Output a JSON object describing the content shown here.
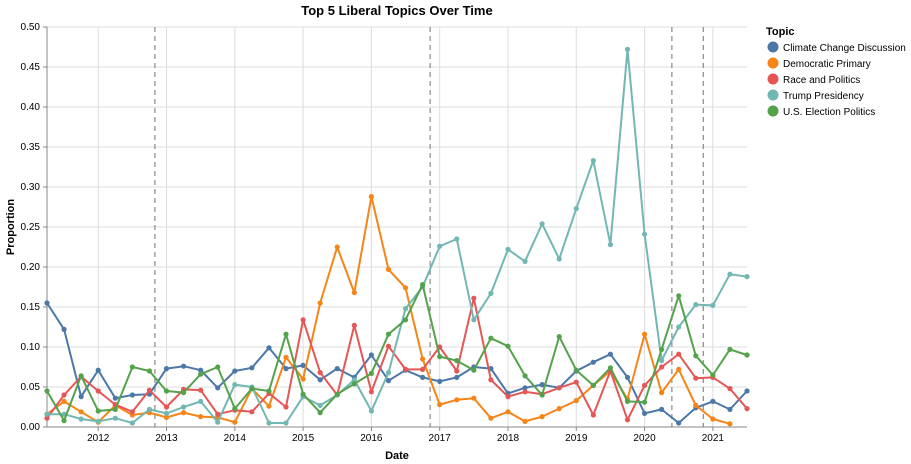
{
  "chart_data": {
    "type": "line",
    "title": "Top 5 Liberal Topics Over Time",
    "xlabel": "Date",
    "ylabel": "Proportion",
    "xlim": [
      2011.25,
      2021.5
    ],
    "ylim": [
      0,
      0.5
    ],
    "y_ticks": [
      "0.00",
      "0.05",
      "0.10",
      "0.15",
      "0.20",
      "0.25",
      "0.30",
      "0.35",
      "0.40",
      "0.45",
      "0.50"
    ],
    "x_ticks": [
      "2012",
      "2013",
      "2014",
      "2015",
      "2016",
      "2017",
      "2018",
      "2019",
      "2020",
      "2021"
    ],
    "grid": true,
    "legend_title": "Topic",
    "legend_position": "right",
    "reference_lines_x": [
      2012.83,
      2016.86,
      2020.4,
      2020.86
    ],
    "x": [
      2011.25,
      2011.5,
      2011.75,
      2012,
      2012.25,
      2012.5,
      2012.75,
      2013,
      2013.25,
      2013.5,
      2013.75,
      2014,
      2014.25,
      2014.5,
      2014.75,
      2015,
      2015.25,
      2015.5,
      2015.75,
      2016,
      2016.25,
      2016.5,
      2016.75,
      2017,
      2017.25,
      2017.5,
      2017.75,
      2018,
      2018.25,
      2018.5,
      2018.75,
      2019,
      2019.25,
      2019.5,
      2019.75,
      2020,
      2020.25,
      2020.5,
      2020.75,
      2021,
      2021.25,
      2021.5
    ],
    "series": [
      {
        "name": "Climate Change Discussion",
        "color": "#4c78a8",
        "values": [
          0.155,
          0.122,
          0.038,
          0.071,
          0.036,
          0.04,
          0.041,
          0.073,
          0.076,
          0.071,
          0.049,
          0.07,
          0.074,
          0.099,
          0.073,
          0.077,
          0.059,
          0.073,
          0.062,
          0.09,
          0.058,
          0.071,
          0.062,
          0.057,
          0.062,
          0.075,
          0.073,
          0.042,
          0.049,
          0.053,
          0.049,
          0.07,
          0.081,
          0.091,
          0.062,
          0.017,
          0.022,
          0.005,
          0.024,
          0.032,
          0.022,
          0.045
        ]
      },
      {
        "name": "Democratic Primary",
        "color": "#f58518",
        "values": [
          0.016,
          0.032,
          0.019,
          0.006,
          0.027,
          0.015,
          0.018,
          0.012,
          0.018,
          0.013,
          0.012,
          0.006,
          0.048,
          0.026,
          0.087,
          0.06,
          0.155,
          0.225,
          0.168,
          0.288,
          0.197,
          0.174,
          0.085,
          0.028,
          0.034,
          0.036,
          0.011,
          0.019,
          0.007,
          0.013,
          0.023,
          0.033,
          0.052,
          0.07,
          0.035,
          0.116,
          0.043,
          0.072,
          0.027,
          0.01,
          0.004,
          null
        ]
      },
      {
        "name": "Race and Politics",
        "color": "#e45756",
        "values": [
          0.011,
          0.04,
          0.063,
          0.045,
          0.028,
          0.019,
          0.046,
          0.025,
          0.047,
          0.046,
          0.016,
          0.021,
          0.019,
          0.042,
          0.025,
          0.134,
          0.068,
          0.04,
          0.127,
          0.044,
          0.101,
          0.072,
          0.072,
          0.1,
          0.07,
          0.161,
          0.059,
          0.038,
          0.044,
          0.041,
          0.049,
          0.056,
          0.015,
          0.07,
          0.009,
          0.052,
          0.075,
          0.091,
          0.061,
          0.062,
          0.048,
          0.023
        ]
      },
      {
        "name": "Trump Presidency",
        "color": "#72b7b2",
        "values": [
          0.016,
          0.016,
          0.01,
          0.007,
          0.011,
          0.005,
          0.022,
          0.017,
          0.025,
          0.032,
          0.006,
          0.053,
          0.05,
          0.005,
          0.005,
          0.038,
          0.027,
          0.04,
          0.059,
          0.02,
          0.068,
          0.148,
          0.175,
          0.226,
          0.235,
          0.134,
          0.167,
          0.222,
          0.207,
          0.254,
          0.21,
          0.273,
          0.333,
          0.228,
          0.472,
          0.241,
          0.083,
          0.125,
          0.153,
          0.152,
          0.191,
          0.188
        ]
      },
      {
        "name": "U.S. Election Politics",
        "color": "#54a24b",
        "values": [
          0.045,
          0.008,
          0.064,
          0.02,
          0.022,
          0.075,
          0.07,
          0.045,
          0.043,
          0.066,
          0.075,
          0.023,
          0.048,
          0.045,
          0.116,
          0.041,
          0.018,
          0.041,
          0.054,
          0.067,
          0.116,
          0.134,
          0.178,
          0.088,
          0.083,
          0.071,
          0.111,
          0.101,
          0.064,
          0.04,
          0.113,
          0.071,
          0.052,
          0.074,
          0.032,
          0.031,
          0.097,
          0.164,
          0.089,
          0.065,
          0.097,
          0.09
        ]
      }
    ]
  }
}
